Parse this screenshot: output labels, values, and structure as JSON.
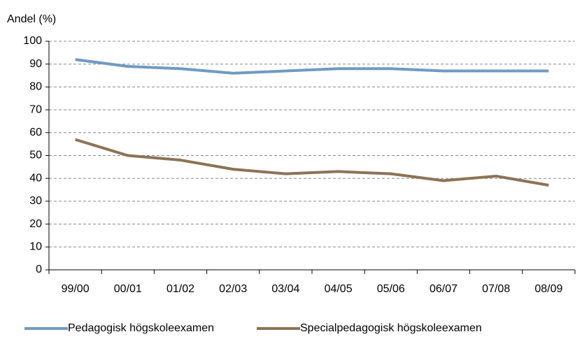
{
  "chart_data": {
    "type": "line",
    "y_label": "Andel (%)",
    "categories": [
      "99/00",
      "00/01",
      "01/02",
      "02/03",
      "03/04",
      "04/05",
      "05/06",
      "06/07",
      "07/08",
      "08/09"
    ],
    "series": [
      {
        "name": "Pedagogisk högskoleexamen",
        "color": "#6f9ac4",
        "values": [
          92,
          89,
          88,
          86,
          87,
          88,
          88,
          87,
          87,
          87
        ]
      },
      {
        "name": "Specialpedagogisk högskoleexamen",
        "color": "#8c7355",
        "values": [
          57,
          50,
          48,
          44,
          42,
          43,
          42,
          39,
          41,
          37
        ]
      }
    ],
    "ylim": [
      0,
      100
    ],
    "yticks": [
      0,
      10,
      20,
      30,
      40,
      50,
      60,
      70,
      80,
      90,
      100
    ],
    "grid": true
  }
}
